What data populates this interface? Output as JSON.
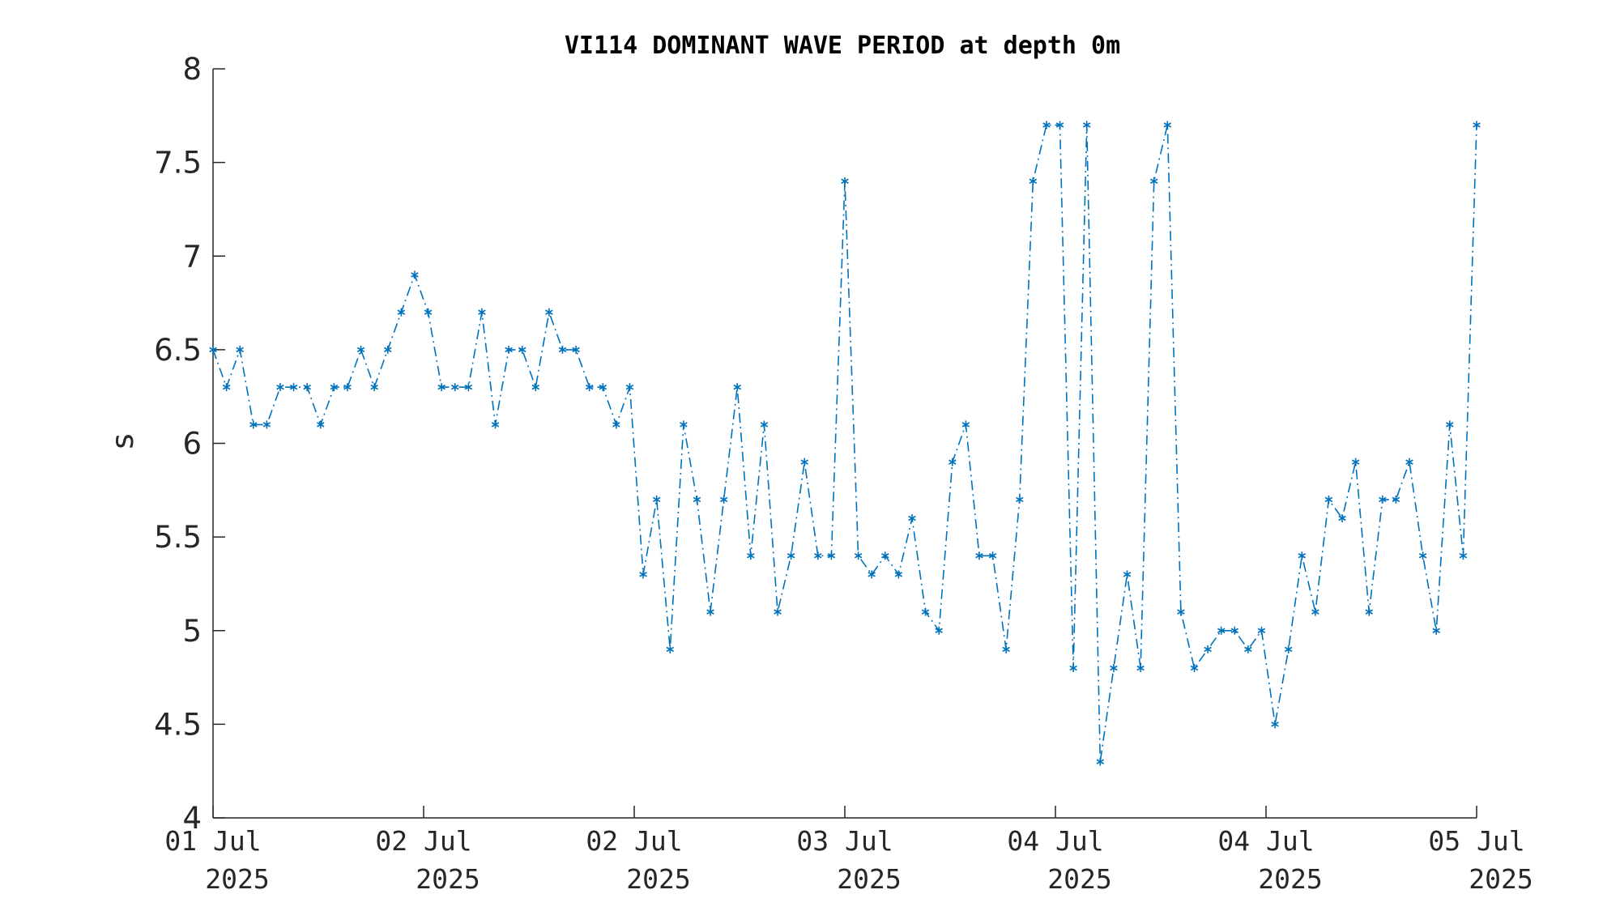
{
  "chart_data": {
    "type": "line",
    "title": "VI114 DOMINANT WAVE PERIOD at depth 0m",
    "xlabel": "",
    "ylabel": "s",
    "ylim": [
      4,
      8
    ],
    "yticks": [
      "4",
      "4.5",
      "5",
      "5.5",
      "6",
      "6.5",
      "7",
      "7.5",
      "8"
    ],
    "xticks": [
      {
        "day": "01 Jul",
        "year": "2025"
      },
      {
        "day": "02 Jul",
        "year": "2025"
      },
      {
        "day": "02 Jul",
        "year": "2025"
      },
      {
        "day": "03 Jul",
        "year": "2025"
      },
      {
        "day": "04 Jul",
        "year": "2025"
      },
      {
        "day": "04 Jul",
        "year": "2025"
      },
      {
        "day": "05 Jul",
        "year": "2025"
      }
    ],
    "grid": false,
    "line_style": "dash-dot",
    "marker": "asterisk",
    "color": "#0072BD",
    "series": [
      {
        "values": [
          6.5,
          6.3,
          6.5,
          6.1,
          6.1,
          6.3,
          6.3,
          6.3,
          6.1,
          6.3,
          6.3,
          6.5,
          6.3,
          6.5,
          6.7,
          6.9,
          6.7,
          6.3,
          6.3,
          6.3,
          6.7,
          6.1,
          6.5,
          6.5,
          6.3,
          6.7,
          6.5,
          6.5,
          6.3,
          6.3,
          6.1,
          6.3,
          5.3,
          5.7,
          4.9,
          6.1,
          5.7,
          5.1,
          5.7,
          6.3,
          5.4,
          6.1,
          5.1,
          5.4,
          5.9,
          5.4,
          5.4,
          7.4,
          5.4,
          5.3,
          5.4,
          5.3,
          5.6,
          5.1,
          5.0,
          5.9,
          6.1,
          5.4,
          5.4,
          4.9,
          5.7,
          7.4,
          7.7,
          7.7,
          4.8,
          7.7,
          4.3,
          4.8,
          5.3,
          4.8,
          7.4,
          7.7,
          5.1,
          4.8,
          4.9,
          5.0,
          5.0,
          4.9,
          5.0,
          4.5,
          4.9,
          5.4,
          5.1,
          5.7,
          5.6,
          5.9,
          5.1,
          5.7,
          5.7,
          5.9,
          5.4,
          5.0,
          6.1,
          5.4,
          7.7
        ]
      }
    ]
  }
}
